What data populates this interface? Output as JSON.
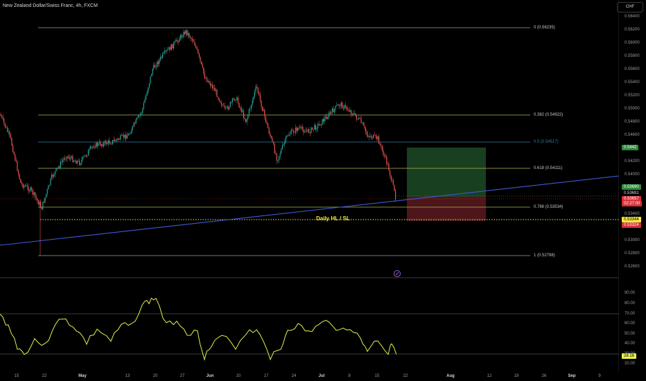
{
  "header": {
    "title": "New Zealand Dollar/Swiss Franc, 4h, FXCM",
    "currency": "CHF"
  },
  "fib_levels": [
    {
      "label": "0 (0.56235)",
      "price": 0.56235,
      "color": "#a0a0a0"
    },
    {
      "label": "0.382 (0.54922)",
      "price": 0.54922,
      "color": "#b7b556"
    },
    {
      "label": "0.5 (0.54517)",
      "price": 0.54517,
      "color": "#2f7fa6"
    },
    {
      "label": "0.618 (0.54111)",
      "price": 0.54111,
      "color": "#b7b556"
    },
    {
      "label": "0.786 (0.53534)",
      "price": 0.53534,
      "color": "#b7b556"
    },
    {
      "label": "1 (0.52798)",
      "price": 0.52798,
      "color": "#a0a0a0"
    }
  ],
  "annotations": {
    "sl_label": "Daily HL / SL"
  },
  "price_ticks": [
    "0.56400",
    "0.56200",
    "0.56000",
    "0.55800",
    "0.55600",
    "0.55400",
    "0.55200",
    "0.55000",
    "0.54800",
    "0.54600",
    "0.54200",
    "0.54000",
    "0.53400",
    "0.53000",
    "0.52800",
    "0.52600"
  ],
  "price_flags": [
    {
      "text": "0.5442",
      "color": "#2e8a3c"
    },
    {
      "text": "0.53690",
      "color": "#2e8a3c"
    },
    {
      "text": "0.53691",
      "color": "#000000"
    },
    {
      "text": "0.53657",
      "color": "#d73038"
    },
    {
      "text": "02:27:00",
      "color": "#d73038"
    },
    {
      "text": "0.53344",
      "color": "#f2ea3c"
    },
    {
      "text": "0.53324",
      "color": "#d73038"
    }
  ],
  "rsi_ticks": [
    "90.00",
    "80.00",
    "70.00",
    "60.00",
    "50.00",
    "40.00",
    "30.00",
    "20.00"
  ],
  "rsi_value": "28.16",
  "time_ticks": [
    {
      "label": "15",
      "bold": false
    },
    {
      "label": "22",
      "bold": false
    },
    {
      "label": "May",
      "bold": true
    },
    {
      "label": "13",
      "bold": false
    },
    {
      "label": "20",
      "bold": false
    },
    {
      "label": "27",
      "bold": false
    },
    {
      "label": "Jun",
      "bold": true
    },
    {
      "label": "10",
      "bold": false
    },
    {
      "label": "17",
      "bold": false
    },
    {
      "label": "24",
      "bold": false
    },
    {
      "label": "Jul",
      "bold": true
    },
    {
      "label": "8",
      "bold": false
    },
    {
      "label": "15",
      "bold": false
    },
    {
      "label": "22",
      "bold": false
    },
    {
      "label": "Aug",
      "bold": true
    },
    {
      "label": "12",
      "bold": false
    },
    {
      "label": "19",
      "bold": false
    },
    {
      "label": "26",
      "bold": false
    },
    {
      "label": "Sep",
      "bold": true
    },
    {
      "label": "9",
      "bold": false
    }
  ],
  "colors": {
    "up_candle": "#26a69a",
    "down_candle": "#ef5350",
    "trendline": "#3d5bd6",
    "rsi_line": "#e9f04a",
    "long_target": "#1c4a24",
    "long_stop": "#5a1a1e"
  }
}
